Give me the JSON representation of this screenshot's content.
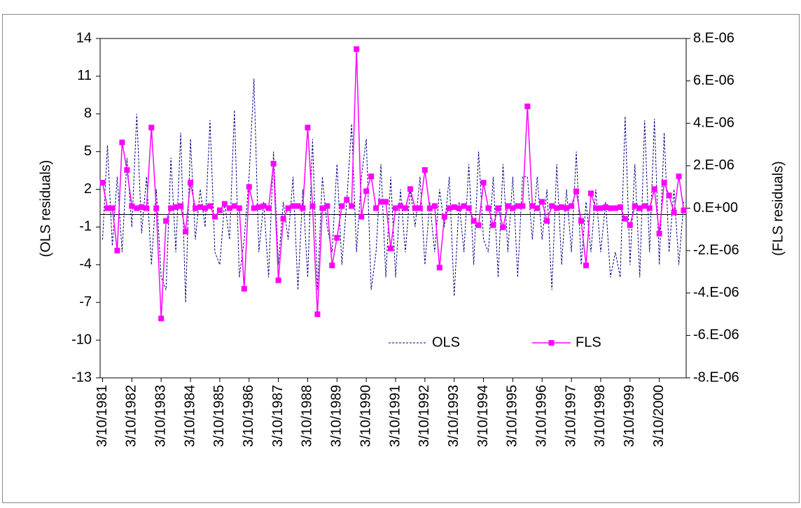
{
  "chart_data": {
    "type": "line",
    "y_label": "(OLS residuals)",
    "y2_label": "(FLS residuals)",
    "categories": [
      "3/10/1981",
      null,
      null,
      null,
      null,
      null,
      "3/10/1982",
      null,
      null,
      null,
      null,
      null,
      "3/10/1983",
      null,
      null,
      null,
      null,
      null,
      "3/10/1984",
      null,
      null,
      null,
      null,
      null,
      "3/10/1985",
      null,
      null,
      null,
      null,
      null,
      "3/10/1986",
      null,
      null,
      null,
      null,
      null,
      "3/10/1987",
      null,
      null,
      null,
      null,
      null,
      "3/10/1988",
      null,
      null,
      null,
      null,
      null,
      "3/10/1989",
      null,
      null,
      null,
      null,
      null,
      "3/10/1990",
      null,
      null,
      null,
      null,
      null,
      "3/10/1991",
      null,
      null,
      null,
      null,
      null,
      "3/10/1992",
      null,
      null,
      null,
      null,
      null,
      "3/10/1993",
      null,
      null,
      null,
      null,
      null,
      "3/10/1994",
      null,
      null,
      null,
      null,
      null,
      "3/10/1995",
      null,
      null,
      null,
      null,
      null,
      "3/10/1996",
      null,
      null,
      null,
      null,
      null,
      "3/10/1997",
      null,
      null,
      null,
      null,
      null,
      "3/10/1998",
      null,
      null,
      null,
      null,
      null,
      "3/10/1999",
      null,
      null,
      null,
      null,
      null,
      "3/10/2000",
      null,
      null,
      null,
      null,
      null
    ],
    "series": [
      {
        "name": "OLS",
        "color": "#000080",
        "axis": "y",
        "style": "dashed",
        "values": [
          -2,
          5.5,
          -2.5,
          3,
          -3,
          4.5,
          -1,
          8,
          -1.5,
          3,
          -4,
          2,
          -5,
          -6,
          4.5,
          -3,
          6.5,
          -7,
          6,
          -2,
          2,
          -1,
          7.5,
          -3,
          -4,
          1,
          -2,
          8.3,
          -5,
          -2,
          3,
          10.8,
          -3,
          1,
          -5,
          5,
          -4,
          1,
          -2,
          3,
          -6,
          2,
          -5,
          6,
          -6,
          3,
          -1,
          -3,
          4,
          -4,
          1,
          7.2,
          -3,
          3,
          6,
          -6,
          -3,
          4,
          -5,
          3,
          -5,
          2,
          -3,
          2,
          -1,
          3,
          -4,
          1,
          -3,
          2,
          -1,
          3,
          -6.5,
          1,
          -3,
          4,
          -4,
          5,
          -2,
          -3,
          3,
          -5,
          4,
          -3,
          3,
          -5,
          3,
          3,
          -2,
          3,
          -2,
          2,
          -6,
          4,
          -4,
          2,
          -3,
          5,
          -4,
          1,
          -3,
          2,
          -3,
          1,
          -5,
          -3,
          -5,
          7.8,
          -4,
          4,
          -5,
          7.5,
          -3,
          7.6,
          -4,
          6.5,
          -3,
          2,
          -4,
          1
        ]
      },
      {
        "name": "FLS",
        "color": "#ff00ff",
        "axis": "y2",
        "marker": "square",
        "values": [
          1.2e-06,
          0,
          0,
          -2e-06,
          3.1e-06,
          1.8e-06,
          1e-07,
          0,
          5e-08,
          0,
          3.8e-06,
          0,
          -5.2e-06,
          -6e-07,
          0,
          5e-08,
          1e-07,
          -1.1e-06,
          1.2e-06,
          0,
          5e-08,
          0,
          1e-07,
          -4e-07,
          -1e-07,
          2e-07,
          0,
          1e-07,
          0,
          -3.8e-06,
          1e-06,
          0,
          5e-08,
          1e-07,
          0,
          2.1e-06,
          -3.4e-06,
          -5e-07,
          0,
          1e-07,
          1e-07,
          0,
          3.8e-06,
          1e-07,
          -5e-06,
          0,
          1e-07,
          -2.7e-06,
          -1.4e-06,
          1e-07,
          4e-07,
          1e-07,
          7.5e-06,
          -4e-07,
          8e-07,
          1.5e-06,
          0,
          3e-07,
          3e-07,
          -1.9e-06,
          0,
          1e-07,
          0,
          9e-07,
          0,
          0,
          1.8e-06,
          0,
          1e-07,
          -2.8e-06,
          -4e-07,
          0,
          5e-08,
          0,
          1e-07,
          0,
          -6e-07,
          -8e-07,
          1.2e-06,
          0,
          -8e-07,
          0,
          -9e-07,
          1e-07,
          0,
          1e-07,
          1e-07,
          4.8e-06,
          1e-07,
          0,
          3e-07,
          -6e-07,
          1e-07,
          0,
          5e-08,
          0,
          1e-07,
          8e-07,
          -6e-07,
          -2.7e-06,
          7e-07,
          0,
          0,
          5e-08,
          0,
          0,
          5e-08,
          -5e-07,
          -8e-07,
          1e-07,
          0,
          1e-07,
          0,
          9e-07,
          -1.2e-06,
          1.2e-06,
          6e-07,
          -2e-07,
          1.5e-06,
          -1e-07
        ]
      }
    ],
    "ylim": [
      -13,
      14
    ],
    "yticks": [
      -13,
      -10,
      -7,
      -4,
      -1,
      2,
      5,
      8,
      11,
      14
    ],
    "y2lim": [
      -8e-06,
      8e-06
    ],
    "y2ticks": [
      {
        "value": -8e-06,
        "label": "-8.E-06"
      },
      {
        "value": -6e-06,
        "label": "-6.E-06"
      },
      {
        "value": -4e-06,
        "label": "-4.E-06"
      },
      {
        "value": -2e-06,
        "label": "-2.E-06"
      },
      {
        "value": 0,
        "label": "0.E+00"
      },
      {
        "value": 2e-06,
        "label": "2.E-06"
      },
      {
        "value": 4e-06,
        "label": "4.E-06"
      },
      {
        "value": 6e-06,
        "label": "6.E-06"
      },
      {
        "value": 8e-06,
        "label": "8.E-06"
      }
    ],
    "zero_line": true,
    "legend": "bottom-right"
  }
}
